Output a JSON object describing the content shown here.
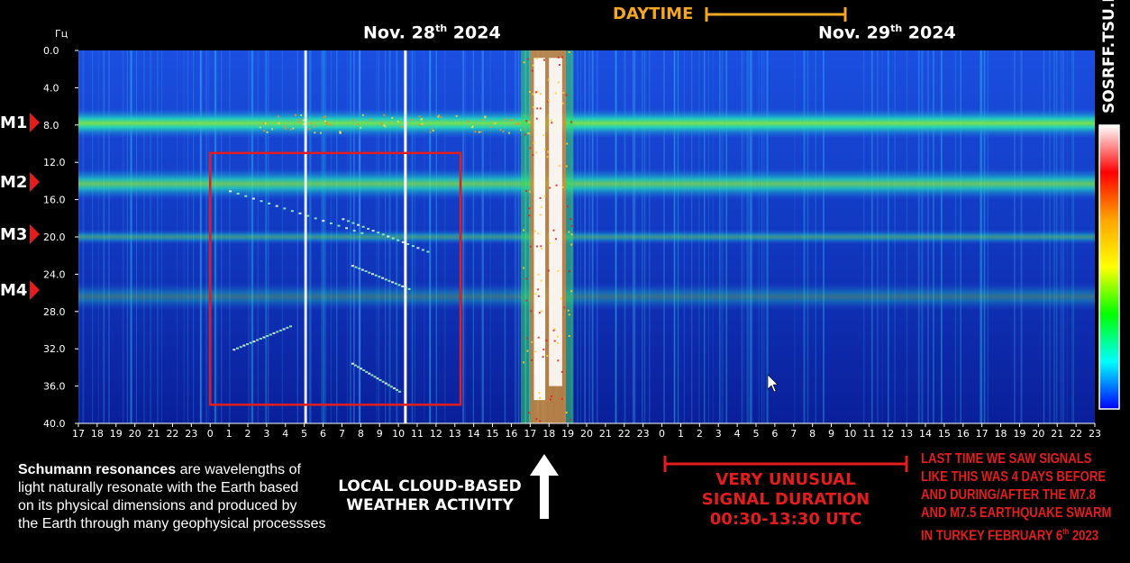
{
  "chart_data": {
    "type": "heatmap",
    "title": "",
    "y_unit_label": "Гц",
    "y_ticks": [
      "0.0",
      "4.0",
      "8.0",
      "12.0",
      "16.0",
      "20.0",
      "24.0",
      "28.0",
      "32.0",
      "36.0",
      "40.0"
    ],
    "ylim": [
      0,
      40
    ],
    "x_ticks": [
      "17",
      "18",
      "19",
      "20",
      "21",
      "22",
      "23",
      "0",
      "1",
      "2",
      "3",
      "4",
      "5",
      "6",
      "7",
      "8",
      "9",
      "10",
      "11",
      "12",
      "13",
      "14",
      "15",
      "16",
      "17",
      "18",
      "19",
      "20",
      "21",
      "22",
      "23",
      "0",
      "1",
      "2",
      "3",
      "4",
      "5",
      "6",
      "7",
      "8",
      "9",
      "10",
      "11",
      "12",
      "13",
      "14",
      "15",
      "16",
      "17",
      "18",
      "19",
      "20",
      "21",
      "22",
      "23"
    ],
    "dates": [
      {
        "main": "Nov. 28",
        "suffix": "th",
        "year": " 2024"
      },
      {
        "main": "Nov. 29",
        "suffix": "th",
        "year": " 2024"
      }
    ],
    "bands": [
      {
        "label": "M1",
        "freq": 7.8
      },
      {
        "label": "M2",
        "freq": 14.3
      },
      {
        "label": "M3",
        "freq": 20.0
      },
      {
        "label": "M4",
        "freq": 26.4
      }
    ],
    "colorbar": [
      "#ffffff",
      "#ff0000",
      "#ffa500",
      "#ffff00",
      "#00ff00",
      "#00ffff",
      "#0000ff"
    ],
    "burst_hours": [
      16.5,
      19.3
    ],
    "unusual_box_hours": [
      0,
      13.3
    ],
    "unusual_box_freq": [
      11,
      38
    ],
    "daytime_hours": [
      3.5,
      10
    ]
  },
  "labels": {
    "daytime": "DAYTIME",
    "site": "SOSRFF.TSU.RU",
    "note_bold": "Schumann resonances",
    "note_rest": [
      " are wavelengths of",
      "light naturally resonate with the Earth based",
      "on its physical dimensions and produced by",
      "the Earth through many geophysical processses"
    ],
    "cloud": [
      "LOCAL CLOUD-BASED",
      "WEATHER ACTIVITY"
    ],
    "unusual": [
      "VERY UNUSUAL",
      "SIGNAL DURATION",
      "00:30-13:30 UTC"
    ],
    "lasttime": [
      "LAST TIME WE SAW SIGNALS",
      "LIKE THIS WAS 4 DAYS BEFORE",
      "AND DURING/AFTER THE M7.8",
      "AND M7.5 EARTHQUAKE SWARM",
      "IN TURKEY FEBRUARY 6"
    ],
    "lasttime_suffix": "th",
    "lasttime_year": " 2023"
  },
  "colors": {
    "accent_orange": "#f5a623",
    "accent_red": "#e31d1d",
    "spectrogram_bg": "#1038c8"
  }
}
